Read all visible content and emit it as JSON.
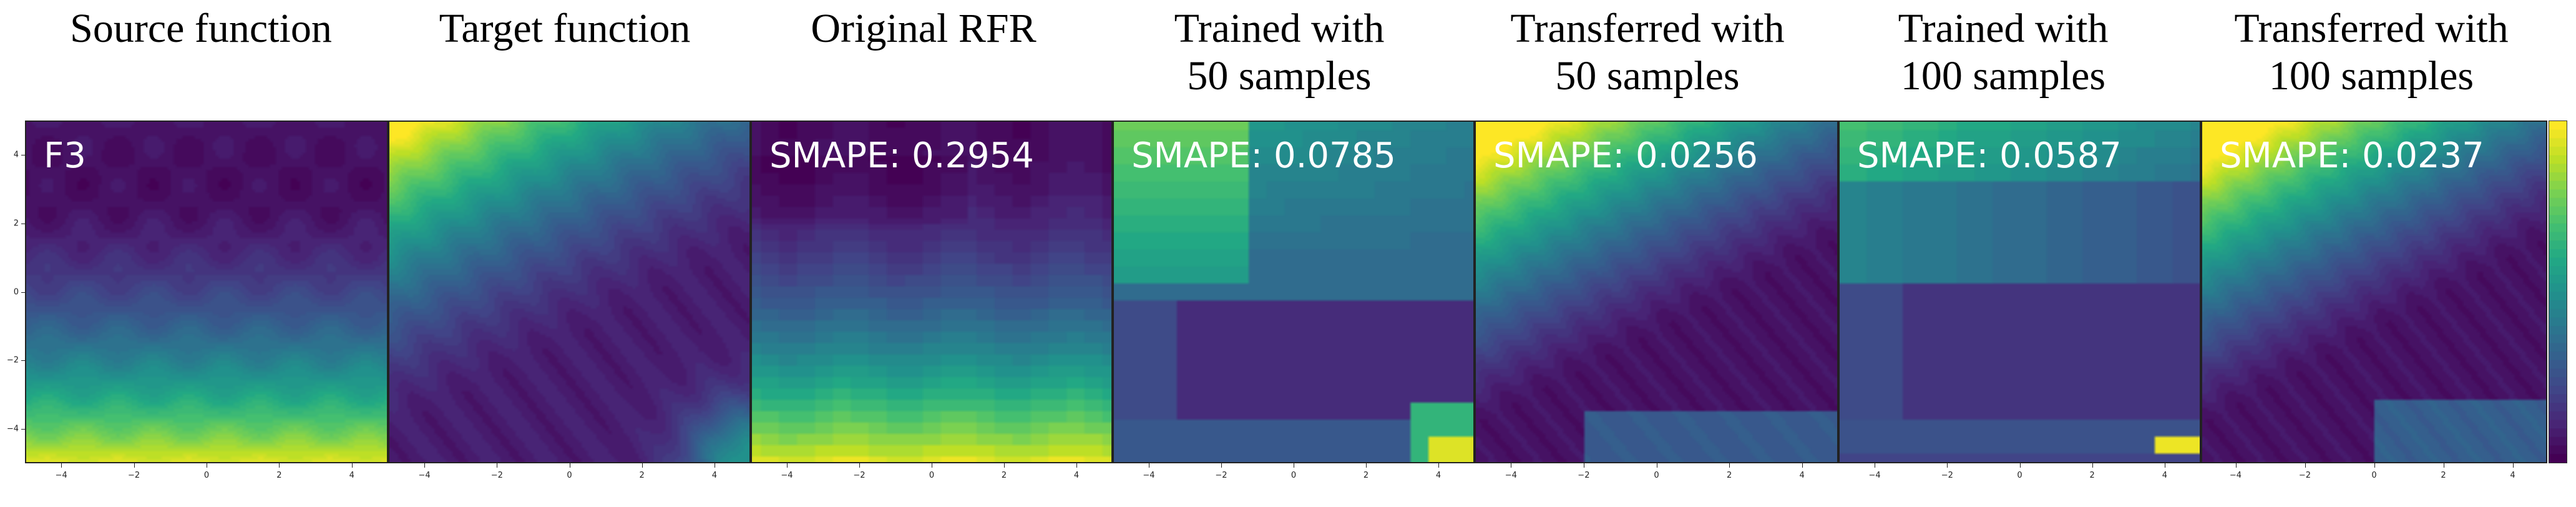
{
  "chart_data": {
    "type": "heatmap",
    "colormap": "viridis",
    "colorbar": {
      "visible": true,
      "tick_labels": [],
      "placement": "right"
    },
    "x_range": [
      -5,
      5
    ],
    "y_range": [
      -5,
      5
    ],
    "x_ticks": [
      "−4",
      "−2",
      "0",
      "2",
      "4"
    ],
    "x_tick_values": [
      -4,
      -2,
      0,
      2,
      4
    ],
    "y_ticks": [
      "4",
      "2",
      "0",
      "−2",
      "−4"
    ],
    "y_tick_values": [
      4,
      2,
      0,
      -2,
      -4
    ],
    "panels": [
      {
        "id": "source",
        "title": "Source function",
        "annotation": "F3",
        "smape": null,
        "pattern": "horizontal-bands",
        "description": "low (purple) at top/middle, rising to yellow at bottom, wavy periodic ripples"
      },
      {
        "id": "target",
        "title": "Target function",
        "annotation": "",
        "smape": null,
        "pattern": "diagonal",
        "description": "yellow at top-left corner, diagonal band down to purple valley, rising to green at bottom-right corner"
      },
      {
        "id": "original-rfr",
        "title": "Original RFR",
        "annotation": "SMAPE: 0.2954",
        "smape": 0.2954,
        "pattern": "horizontal-bands-blocky",
        "description": "purple top, green/yellow at bottom, step-like forest prediction"
      },
      {
        "id": "trained-50",
        "title": "Trained with\n50 samples",
        "annotation": "SMAPE: 0.0785",
        "smape": 0.0785,
        "pattern": "blocky",
        "description": "green top-left, purple middle band, yellow hotspot bottom-right"
      },
      {
        "id": "transferred-50",
        "title": "Transferred with\n50 samples",
        "annotation": "SMAPE: 0.0256",
        "smape": 0.0256,
        "pattern": "diagonal",
        "description": "close match to target: yellow top-left, purple diagonal valley, teal bottom"
      },
      {
        "id": "trained-100",
        "title": "Trained with\n100 samples",
        "annotation": "SMAPE: 0.0587",
        "smape": 0.0587,
        "pattern": "blocky",
        "description": "yellow-green top, purple middle band, yellow hotspot bottom-right"
      },
      {
        "id": "transferred-100",
        "title": "Transferred with\n100 samples",
        "annotation": "SMAPE: 0.0237",
        "smape": 0.0237,
        "pattern": "diagonal",
        "description": "closest match to target: yellow top-left, purple diagonal valley, teal bottom-right"
      }
    ]
  }
}
